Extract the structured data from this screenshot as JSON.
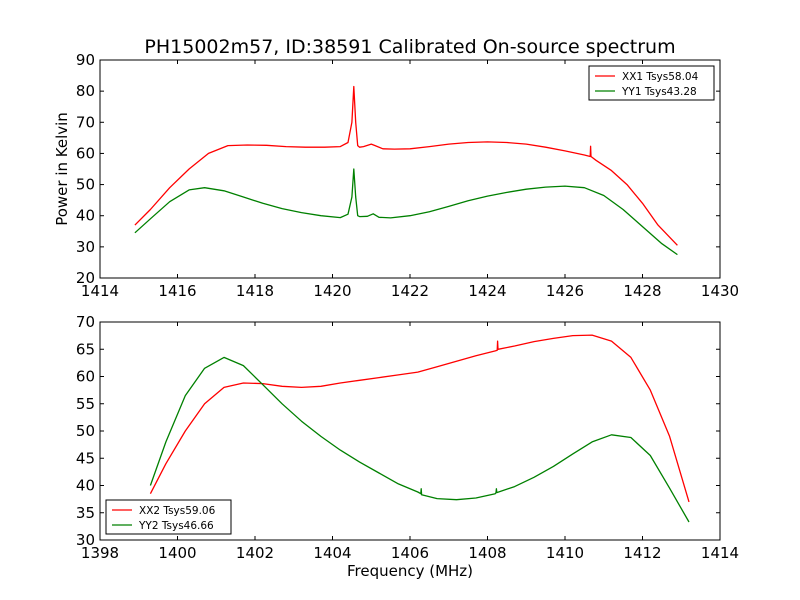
{
  "figure": {
    "title": "PH15002m57, ID:38591 Calibrated On-source spectrum",
    "ylabel": "Power in Kelvin",
    "xlabel": "Frequency (MHz)"
  },
  "chart_data": [
    {
      "type": "line",
      "xlim": [
        1414,
        1430
      ],
      "ylim": [
        20,
        90
      ],
      "xticks": [
        1414,
        1416,
        1418,
        1420,
        1422,
        1424,
        1426,
        1428,
        1430
      ],
      "yticks": [
        20,
        30,
        40,
        50,
        60,
        70,
        80,
        90
      ],
      "grid": false,
      "legend": "top-right",
      "series": [
        {
          "name": "XX1 Tsys58.04",
          "color": "#ff0000",
          "x": [
            1414.9,
            1415.3,
            1415.8,
            1416.3,
            1416.8,
            1417.3,
            1417.8,
            1418.3,
            1418.8,
            1419.3,
            1419.8,
            1420.2,
            1420.4,
            1420.5,
            1420.55,
            1420.6,
            1420.65,
            1420.7,
            1420.8,
            1421.0,
            1421.1,
            1421.3,
            1421.6,
            1422.0,
            1422.5,
            1423.0,
            1423.5,
            1424.0,
            1424.5,
            1425.0,
            1425.5,
            1426.0,
            1426.5,
            1426.65,
            1426.66,
            1426.67,
            1426.8,
            1427.2,
            1427.6,
            1428.0,
            1428.4,
            1428.9
          ],
          "y": [
            37,
            42,
            49,
            55,
            60,
            62.5,
            62.7,
            62.6,
            62.2,
            62.0,
            62.0,
            62.2,
            63.5,
            70,
            81.5,
            70,
            62.5,
            62.0,
            62.2,
            63.0,
            62.5,
            61.5,
            61.4,
            61.5,
            62.2,
            63.0,
            63.5,
            63.7,
            63.5,
            63.0,
            62.0,
            60.8,
            59.5,
            59.0,
            62.3,
            59.0,
            57.8,
            54.5,
            50,
            44,
            37,
            30.5
          ]
        },
        {
          "name": "YY1 Tsys43.28",
          "color": "#008000",
          "x": [
            1414.9,
            1415.3,
            1415.8,
            1416.3,
            1416.7,
            1417.2,
            1417.7,
            1418.2,
            1418.7,
            1419.2,
            1419.7,
            1420.2,
            1420.4,
            1420.5,
            1420.55,
            1420.6,
            1420.65,
            1420.7,
            1420.9,
            1421.05,
            1421.2,
            1421.5,
            1422.0,
            1422.5,
            1423.0,
            1423.5,
            1424.0,
            1424.5,
            1425.0,
            1425.5,
            1426.0,
            1426.5,
            1427.0,
            1427.5,
            1428.0,
            1428.5,
            1428.9
          ],
          "y": [
            34.5,
            39,
            44.5,
            48.3,
            49.0,
            48.0,
            46.0,
            44.0,
            42.3,
            41.0,
            40.0,
            39.4,
            40.5,
            46,
            55,
            46,
            40.0,
            39.7,
            39.8,
            40.6,
            39.5,
            39.3,
            40.0,
            41.3,
            43.0,
            44.8,
            46.3,
            47.5,
            48.5,
            49.2,
            49.5,
            49.0,
            46.5,
            42.0,
            36.5,
            31.0,
            27.5
          ]
        }
      ]
    },
    {
      "type": "line",
      "xlim": [
        1398,
        1414
      ],
      "ylim": [
        30,
        70
      ],
      "xticks": [
        1398,
        1400,
        1402,
        1404,
        1406,
        1408,
        1410,
        1412,
        1414
      ],
      "yticks": [
        30,
        35,
        40,
        45,
        50,
        55,
        60,
        65,
        70
      ],
      "grid": false,
      "legend": "bottom-left",
      "series": [
        {
          "name": "XX2 Tsys59.06",
          "color": "#ff0000",
          "x": [
            1399.3,
            1399.7,
            1400.2,
            1400.7,
            1401.2,
            1401.7,
            1402.2,
            1402.7,
            1403.2,
            1403.7,
            1404.2,
            1404.7,
            1405.2,
            1405.7,
            1406.2,
            1406.7,
            1407.2,
            1407.7,
            1408.2,
            1408.25,
            1408.26,
            1408.27,
            1408.7,
            1409.2,
            1409.7,
            1410.2,
            1410.7,
            1411.2,
            1411.7,
            1412.2,
            1412.7,
            1413.2
          ],
          "y": [
            38.5,
            44,
            50,
            55,
            58,
            58.8,
            58.7,
            58.2,
            58.0,
            58.2,
            58.8,
            59.3,
            59.8,
            60.3,
            60.8,
            61.8,
            62.8,
            63.8,
            64.7,
            64.8,
            66.5,
            65.0,
            65.6,
            66.4,
            67.0,
            67.5,
            67.6,
            66.5,
            63.5,
            57.5,
            49.0,
            37.0
          ]
        },
        {
          "name": "YY2 Tsys46.66",
          "color": "#008000",
          "x": [
            1399.3,
            1399.7,
            1400.2,
            1400.7,
            1401.2,
            1401.7,
            1402.2,
            1402.7,
            1403.2,
            1403.7,
            1404.2,
            1404.7,
            1405.2,
            1405.7,
            1406.2,
            1406.28,
            1406.29,
            1406.3,
            1406.7,
            1407.2,
            1407.7,
            1408.2,
            1408.22,
            1408.23,
            1408.24,
            1408.7,
            1409.2,
            1409.7,
            1410.2,
            1410.7,
            1411.2,
            1411.7,
            1412.2,
            1412.7,
            1413.2
          ],
          "y": [
            40,
            48,
            56.5,
            61.5,
            63.5,
            62.0,
            58.5,
            55.0,
            51.8,
            49.0,
            46.5,
            44.3,
            42.3,
            40.3,
            38.8,
            38.5,
            39.4,
            38.3,
            37.6,
            37.4,
            37.7,
            38.5,
            38.7,
            39.4,
            38.7,
            39.8,
            41.5,
            43.5,
            45.8,
            48.0,
            49.3,
            48.8,
            45.5,
            39.5,
            33.3
          ]
        }
      ]
    }
  ]
}
